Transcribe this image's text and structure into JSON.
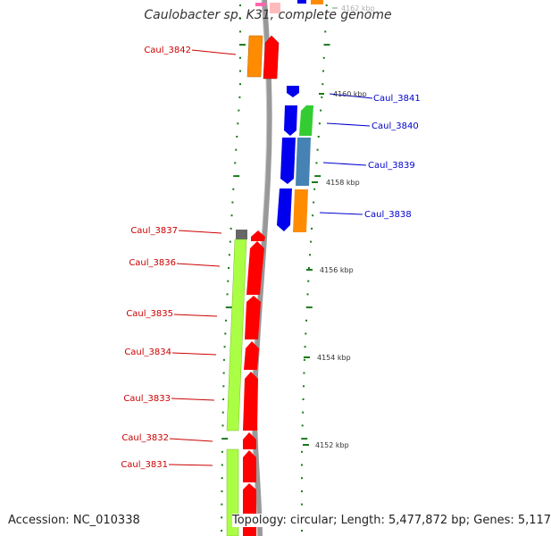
{
  "title": "Caulobacter sp. K31, complete genome",
  "accession_text": "Accession: NC_010338",
  "topology_text": "Topology: circular; Length: 5,477,872 bp; Genes: 5,117",
  "colors": {
    "label_left": "#cc0000",
    "label_right": "#0000cc",
    "backbone": "#999999",
    "tick": "#1a7a1a",
    "gene_red": "#ff0000",
    "gene_blue": "#0000ee",
    "gene_orange": "#ff8c00",
    "gene_green": "#33cc33",
    "gene_steelblue": "#4682b4",
    "gene_lime": "#aaff44",
    "gene_gray": "#666666"
  },
  "kbp_markers": [
    {
      "label": "4162 kbp",
      "faded": true
    },
    {
      "label": "4160 kbp",
      "faded": false
    },
    {
      "label": "4158 kbp",
      "faded": false
    },
    {
      "label": "4156 kbp",
      "faded": false
    },
    {
      "label": "4154 kbp",
      "faded": false
    },
    {
      "label": "4152 kbp",
      "faded": false
    }
  ],
  "genes_left": [
    {
      "id": "g3842",
      "label": "Caul_3842"
    },
    {
      "id": "g3837",
      "label": "Caul_3837"
    },
    {
      "id": "g3836",
      "label": "Caul_3836"
    },
    {
      "id": "g3835",
      "label": "Caul_3835"
    },
    {
      "id": "g3834",
      "label": "Caul_3834"
    },
    {
      "id": "g3833",
      "label": "Caul_3833"
    },
    {
      "id": "g3832",
      "label": "Caul_3832"
    },
    {
      "id": "g3831",
      "label": "Caul_3831"
    }
  ],
  "genes_right": [
    {
      "id": "g3841",
      "label": "Caul_3841"
    },
    {
      "id": "g3840",
      "label": "Caul_3840"
    },
    {
      "id": "g3839",
      "label": "Caul_3839"
    },
    {
      "id": "g3838",
      "label": "Caul_3838"
    }
  ]
}
